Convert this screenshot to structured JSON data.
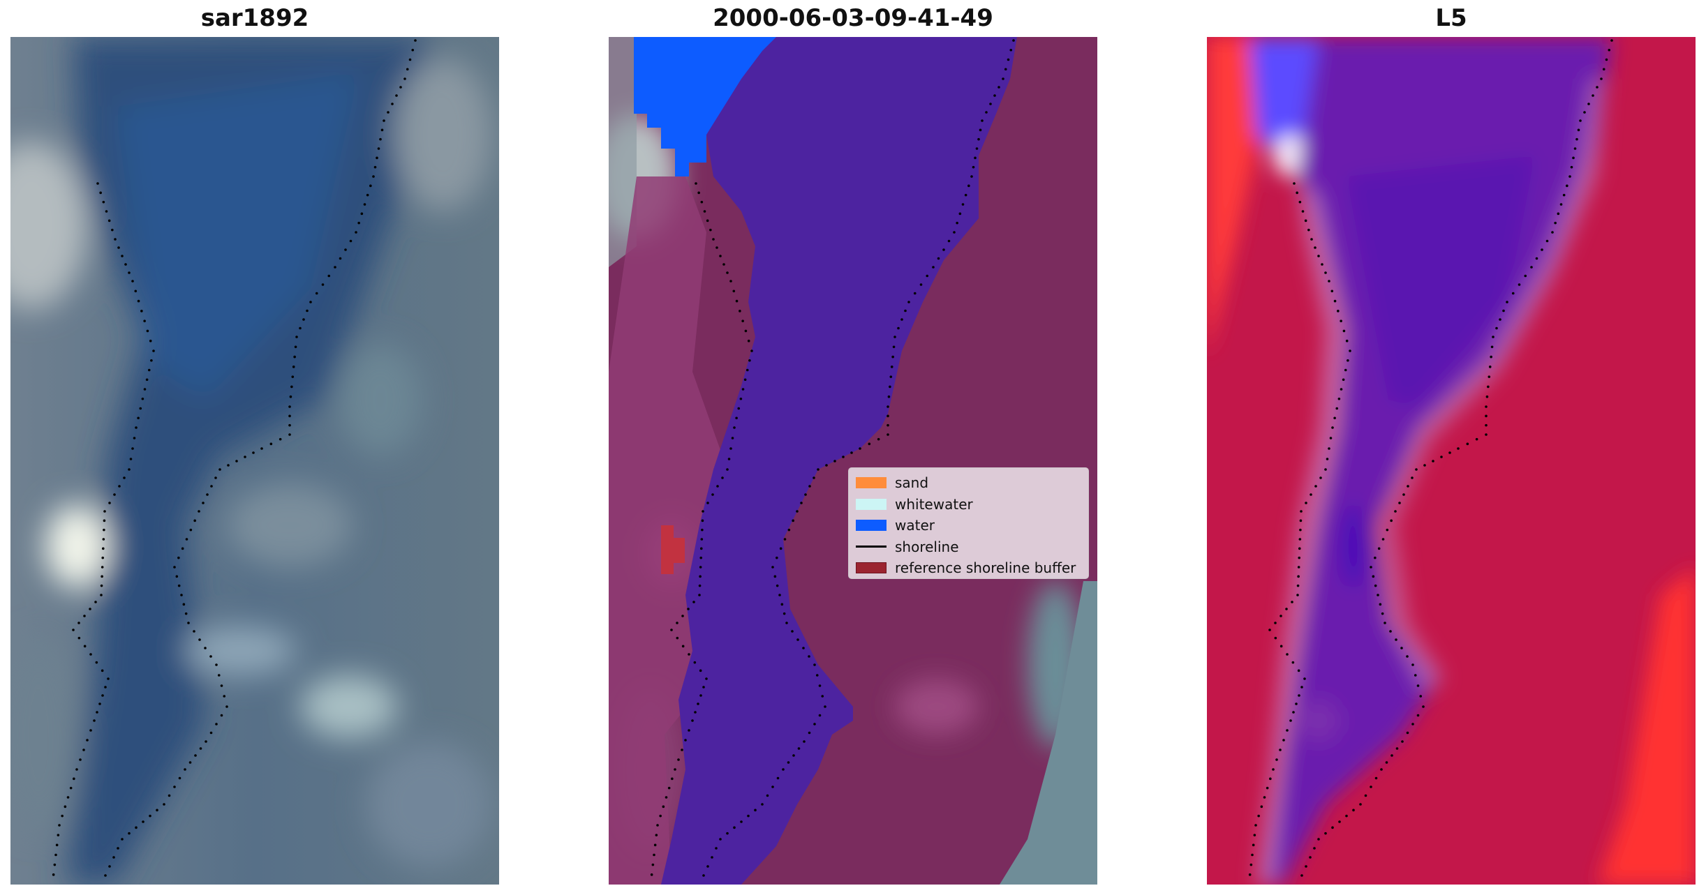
{
  "panels": [
    {
      "title": "sar1892"
    },
    {
      "title": "2000-06-03-09-41-49"
    },
    {
      "title": "L5"
    }
  ],
  "legend": {
    "items": [
      {
        "label": "sand",
        "color": "#ff8c3a",
        "kind": "patch"
      },
      {
        "label": "whitewater",
        "color": "#ccf5f5",
        "kind": "patch"
      },
      {
        "label": "water",
        "color": "#0d5cff",
        "kind": "patch"
      },
      {
        "label": "shoreline",
        "color": "#000000",
        "kind": "line"
      },
      {
        "label": "reference shoreline buffer",
        "color": "#9b2430",
        "kind": "patch"
      }
    ]
  }
}
